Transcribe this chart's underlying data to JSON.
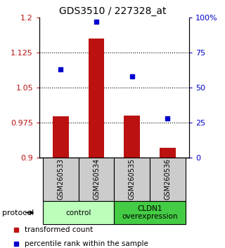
{
  "title": "GDS3510 / 227328_at",
  "samples": [
    "GSM260533",
    "GSM260534",
    "GSM260535",
    "GSM260536"
  ],
  "bar_values": [
    0.988,
    1.155,
    0.99,
    0.92
  ],
  "dot_percentiles": [
    63,
    97,
    58,
    28
  ],
  "ylim_left": [
    0.9,
    1.2
  ],
  "ylim_right": [
    0,
    100
  ],
  "yticks_left": [
    0.9,
    0.975,
    1.05,
    1.125,
    1.2
  ],
  "yticks_right": [
    0,
    25,
    50,
    75,
    100
  ],
  "ytick_labels_left": [
    "0.9",
    "0.975",
    "1.05",
    "1.125",
    "1.2"
  ],
  "ytick_labels_right": [
    "0",
    "25",
    "50",
    "75",
    "100%"
  ],
  "bar_color": "#bb1111",
  "dot_color": "#0000cc",
  "bar_width": 0.45,
  "bar_bottom": 0.9,
  "groups": [
    {
      "label": "control",
      "indices": [
        0,
        1
      ],
      "color": "#bbffbb"
    },
    {
      "label": "CLDN1\noverexpression",
      "indices": [
        2,
        3
      ],
      "color": "#44cc44"
    }
  ],
  "protocol_label": "protocol",
  "legend_bar_label": "transformed count",
  "legend_dot_label": "percentile rank within the sample",
  "title_fontsize": 10,
  "tick_fontsize": 8,
  "label_fontsize": 8
}
